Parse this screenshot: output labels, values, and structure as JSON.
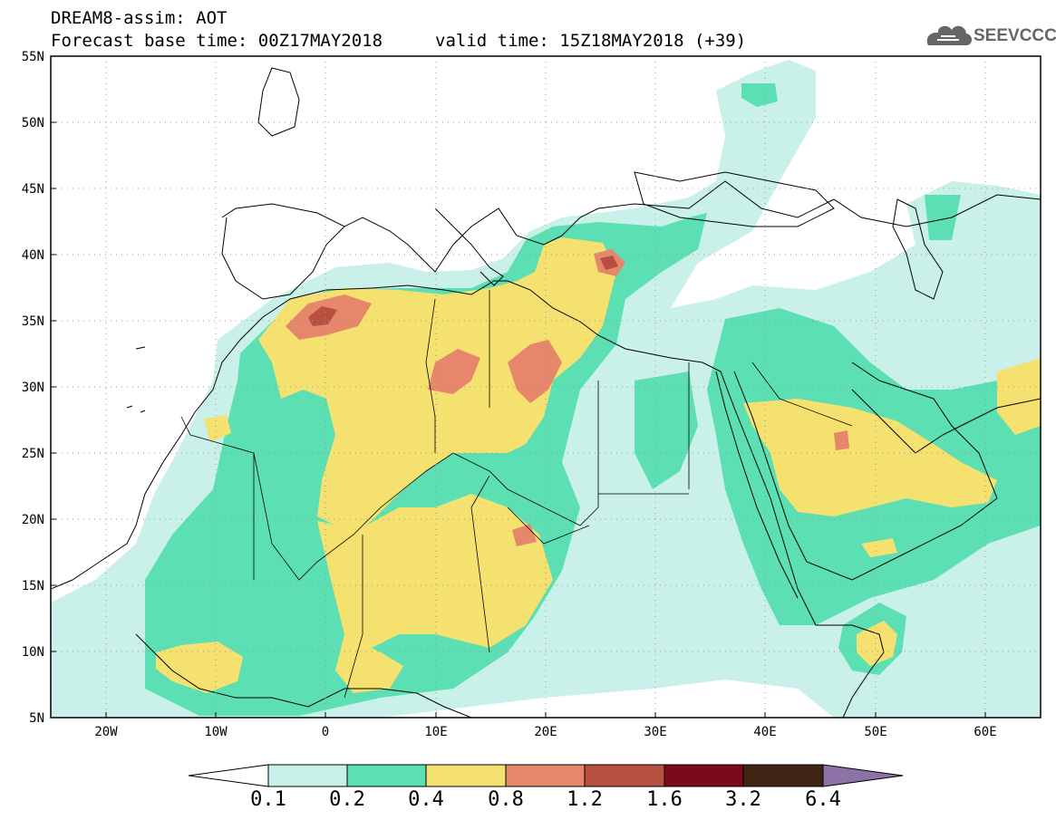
{
  "title": {
    "line1": "DREAM8-assim: AOT",
    "line2": "Forecast base time: 00Z17MAY2018",
    "valid": "valid time: 15Z18MAY2018 (+39)"
  },
  "logo": {
    "text": "SEEVCCC"
  },
  "axes": {
    "lat_labels": [
      "55N",
      "50N",
      "45N",
      "40N",
      "35N",
      "30N",
      "25N",
      "20N",
      "15N",
      "10N",
      "5N"
    ],
    "lon_labels": [
      "20W",
      "10W",
      "0",
      "10E",
      "20E",
      "30E",
      "40E",
      "50E",
      "60E"
    ]
  },
  "colorbar": {
    "labels": [
      "0.1",
      "0.2",
      "0.4",
      "0.8",
      "1.2",
      "1.6",
      "3.2",
      "6.4"
    ],
    "colors": [
      "#ffffff",
      "#c9f1e9",
      "#5ddfb4",
      "#f4e170",
      "#e6866a",
      "#b8503f",
      "#7c0a1c",
      "#3f2414",
      "#8d72a8"
    ]
  },
  "map_colors": {
    "v1": "#c9f1e9",
    "v2": "#5ddfb4",
    "v3": "#f4e170",
    "v4": "#e6866a",
    "v5": "#b8503f"
  }
}
